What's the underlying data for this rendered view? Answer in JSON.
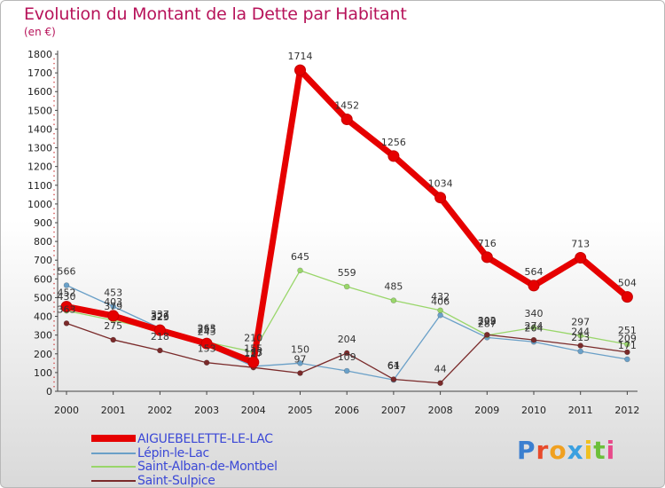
{
  "chart_data": {
    "type": "line",
    "title": "Evolution du Montant de la Dette par Habitant",
    "subtitle": "(en €)",
    "xlabel": "",
    "ylabel": "",
    "ylim": [
      0,
      1800
    ],
    "yticks": [
      0,
      100,
      200,
      300,
      400,
      500,
      600,
      700,
      800,
      900,
      1000,
      1100,
      1200,
      1300,
      1400,
      1500,
      1600,
      1700,
      1800
    ],
    "categories": [
      "2000",
      "2001",
      "2002",
      "2003",
      "2004",
      "2005",
      "2006",
      "2007",
      "2008",
      "2009",
      "2010",
      "2011",
      "2012"
    ],
    "grid": false,
    "legend_position": "bottom-left",
    "series": [
      {
        "name": "AIGUEBELETTE-LE-LAC",
        "color": "#e60000",
        "values": [
          452,
          403,
          326,
          255,
          155,
          1714,
          1452,
          1256,
          1034,
          716,
          564,
          713,
          504
        ]
      },
      {
        "name": "Lépin-le-Lac",
        "color": "#6aa0c8",
        "values": [
          566,
          453,
          337,
          243,
          133,
          150,
          109,
          61,
          406,
          287,
          264,
          213,
          171
        ]
      },
      {
        "name": "Saint-Alban-de-Montbel",
        "color": "#99d66a",
        "values": [
          430,
          379,
          323,
          263,
          210,
          645,
          559,
          485,
          432,
          299,
          340,
          297,
          251
        ]
      },
      {
        "name": "Saint-Sulpice",
        "color": "#7a2a2a",
        "values": [
          363,
          275,
          218,
          153,
          127,
          97,
          204,
          64,
          44,
          302,
          274,
          244,
          209
        ]
      }
    ]
  },
  "brand": {
    "text": "Proxiti"
  }
}
